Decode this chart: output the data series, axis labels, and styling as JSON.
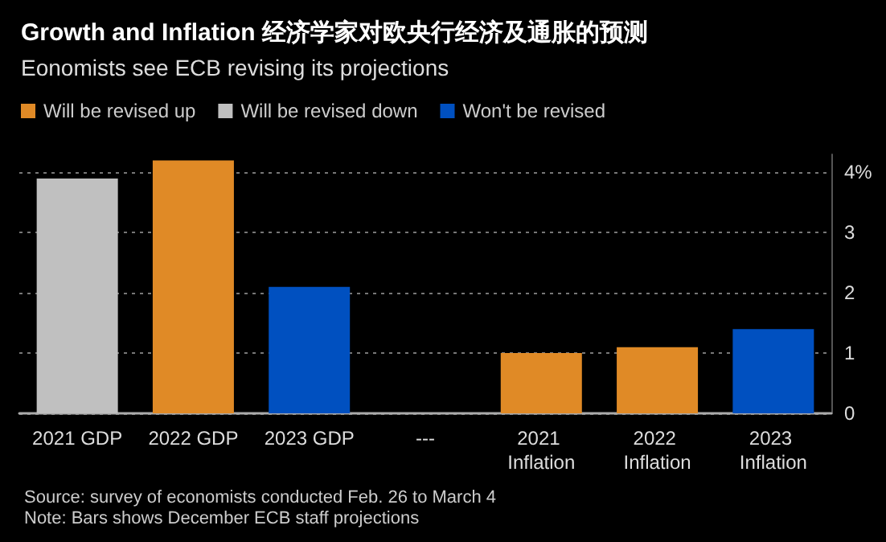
{
  "chart_data": {
    "type": "bar",
    "title": "Growth and Inflation 经济学家对欧央行经济及通胀的预测",
    "subtitle": "Eonomists see ECB revising its projections",
    "categories": [
      "2021 GDP",
      "2022 GDP",
      "2023 GDP",
      "---",
      "2021 Inflation",
      "2022 Inflation",
      "2023 Inflation"
    ],
    "series": [
      {
        "name": "Will be revised up",
        "color": "#e08a26",
        "values": [
          null,
          4.2,
          null,
          null,
          1.0,
          1.1,
          null
        ]
      },
      {
        "name": "Will be revised down",
        "color": "#c0c0c0",
        "values": [
          3.9,
          null,
          null,
          null,
          null,
          null,
          null
        ]
      },
      {
        "name": "Won't be revised",
        "color": "#0050c0",
        "values": [
          null,
          null,
          2.1,
          null,
          null,
          null,
          1.4
        ]
      }
    ],
    "ylim": [
      0,
      4.3
    ],
    "yticks": [
      0,
      1,
      2,
      3,
      {
        "value": 4,
        "label": "4%"
      }
    ],
    "grid": "y",
    "legend": "top left",
    "annotations": [
      "Source: survey of economists conducted Feb. 26 to March 4",
      "Note: Bars shows December ECB staff projections"
    ]
  }
}
